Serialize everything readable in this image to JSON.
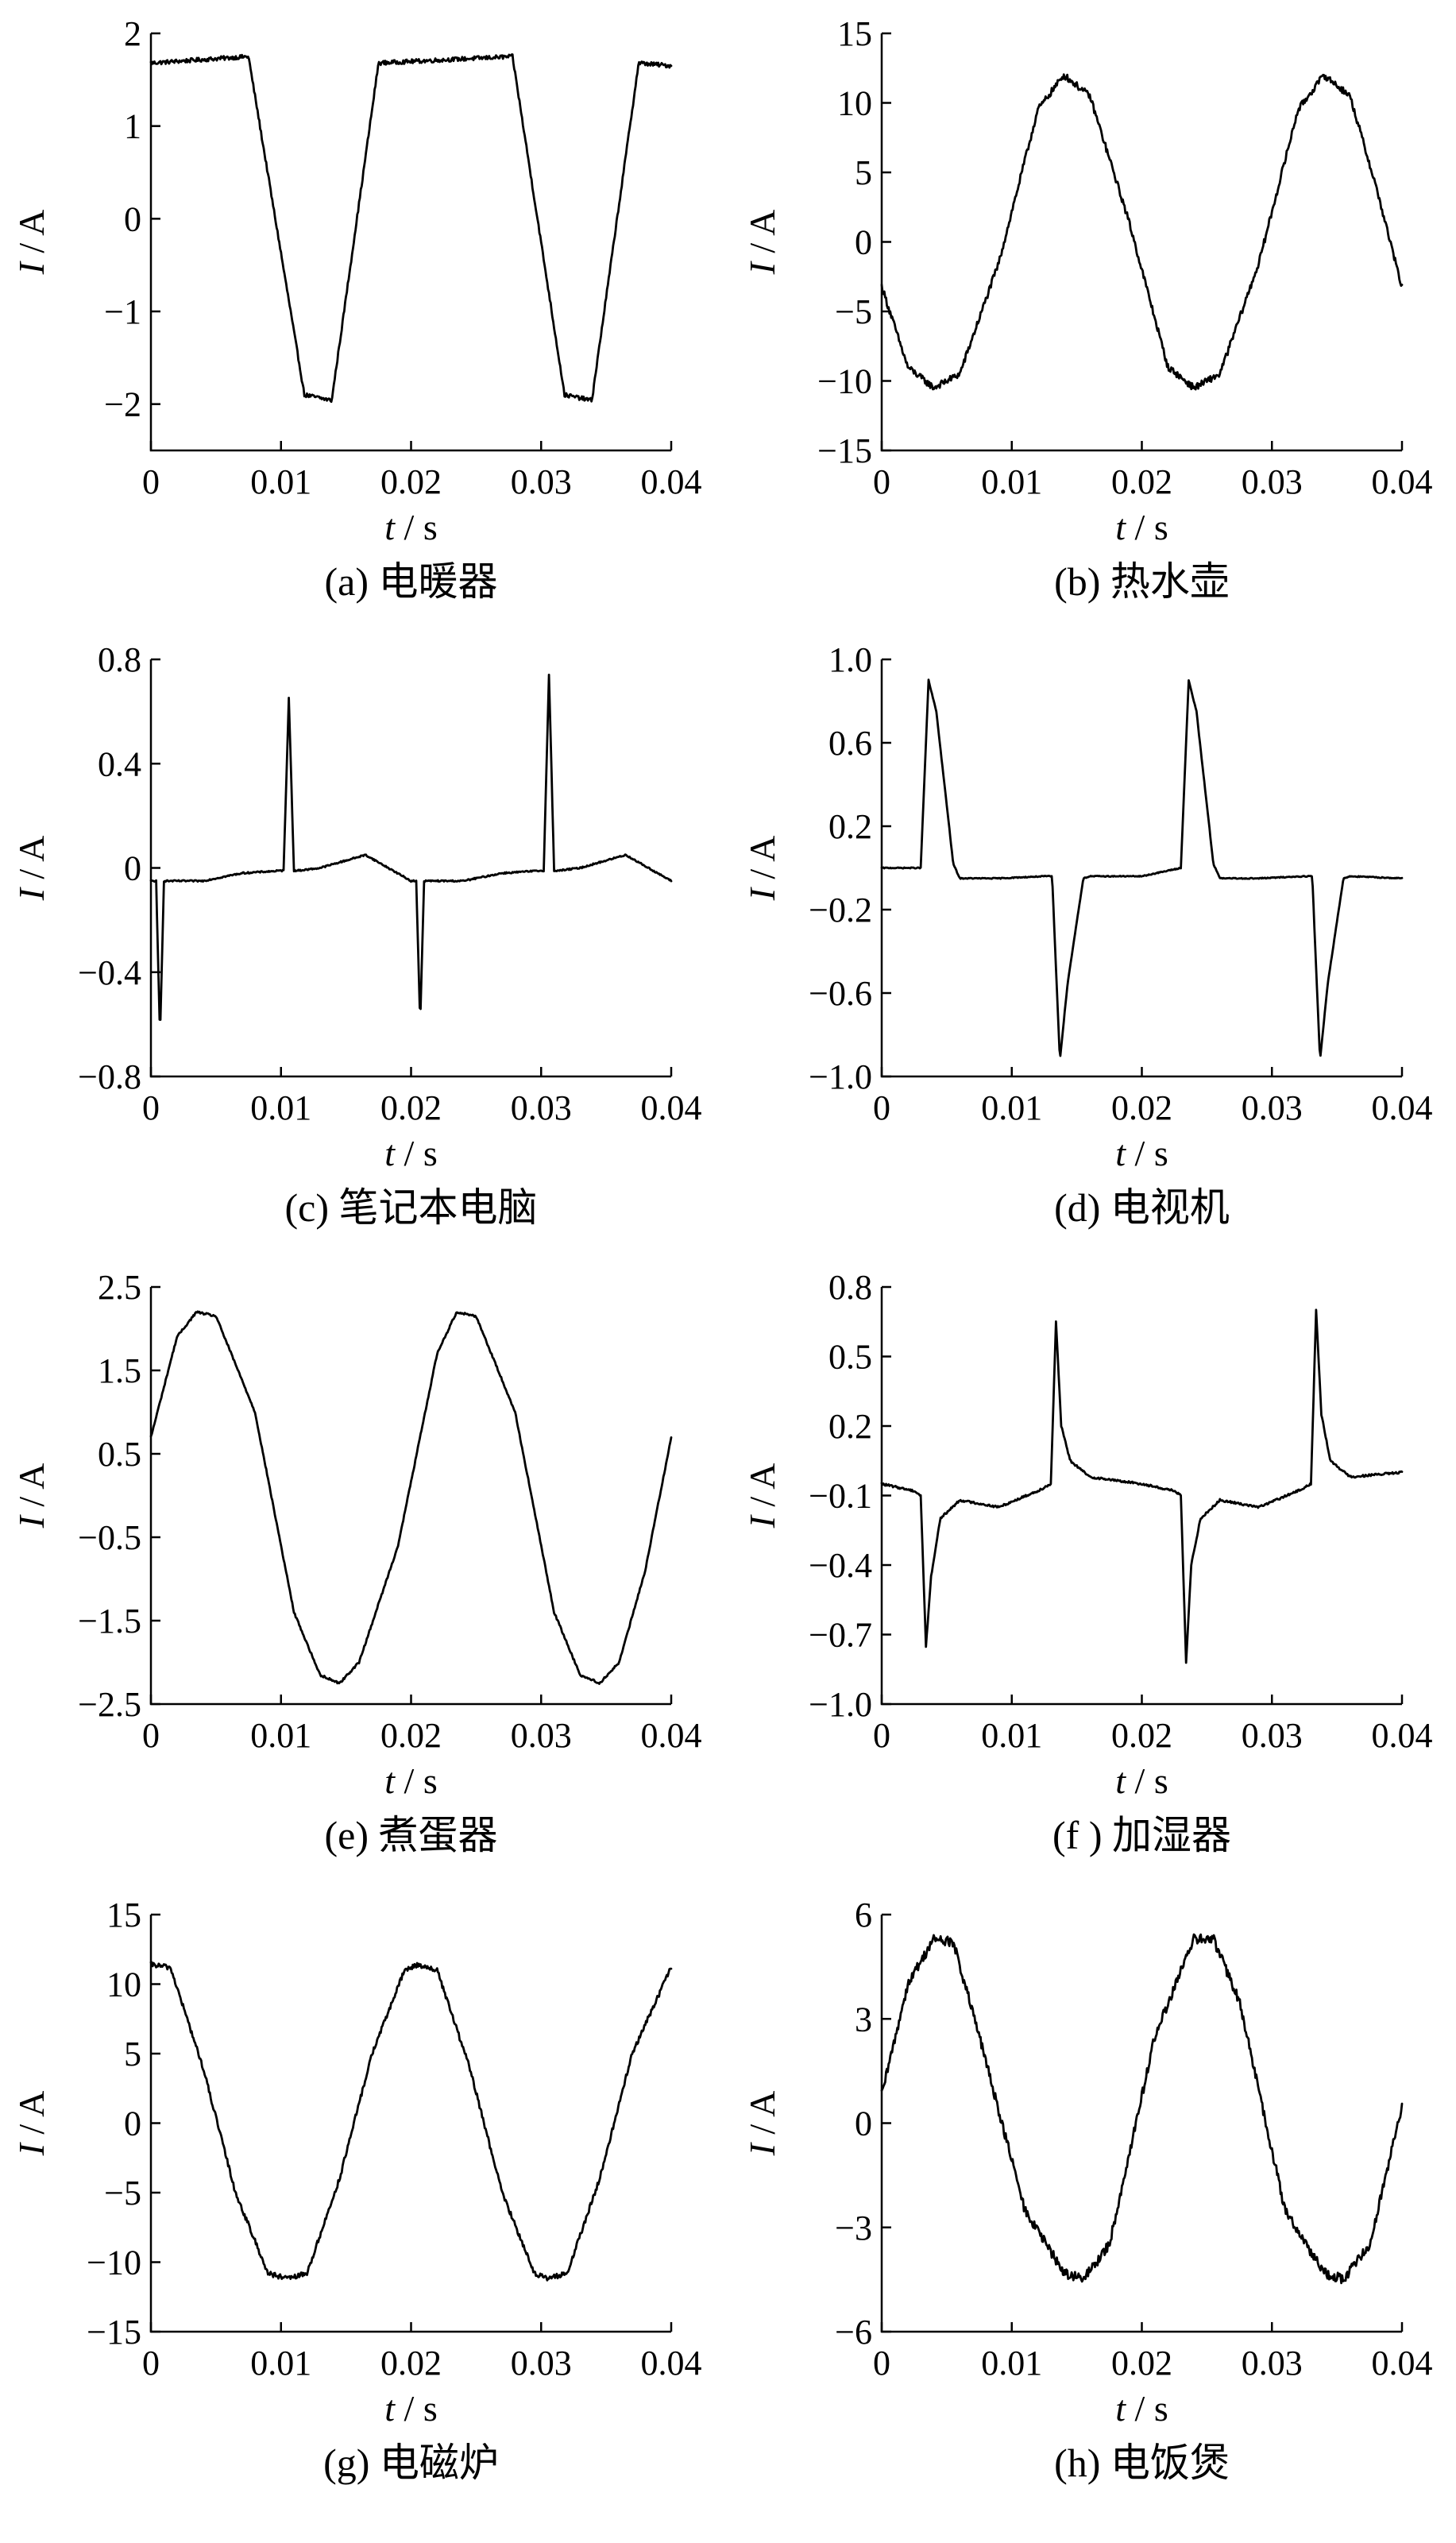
{
  "figure": {
    "panels": [
      {
        "caption": "(a)  电暖器"
      },
      {
        "caption": "(b)  热水壶"
      },
      {
        "caption": "(c)  笔记本电脑"
      },
      {
        "caption": "(d)  电视机"
      },
      {
        "caption": "(e)  煮蛋器"
      },
      {
        "caption": "(f )  加湿器"
      },
      {
        "caption": "(g)  电磁炉"
      },
      {
        "caption": "(h)  电饭煲"
      }
    ]
  },
  "chart_data": [
    {
      "type": "line",
      "caption": "(a)  电暖器",
      "xlabel": {
        "var": "t",
        "unit": " / s"
      },
      "ylabel": {
        "var": "I",
        "unit": " / A"
      },
      "xlim": [
        0,
        0.04
      ],
      "ylim": [
        -2.5,
        2
      ],
      "xticks": [
        0,
        0.01,
        0.02,
        0.03,
        0.04
      ],
      "xtick_labels": [
        "0",
        "0.01",
        "0.02",
        "0.03",
        "0.04"
      ],
      "yticks": [
        2,
        1,
        0,
        -1,
        -2
      ],
      "ytick_labels": [
        "2",
        "1",
        "0",
        "−1",
        "−2"
      ],
      "series": [
        {
          "noise": 0.05,
          "x": [
            0,
            0.0075,
            0.0118,
            0.0139,
            0.0175,
            0.0278,
            0.0318,
            0.0339,
            0.0375,
            0.04
          ],
          "y": [
            1.68,
            1.75,
            -1.9,
            -1.96,
            1.68,
            1.75,
            -1.9,
            -1.96,
            1.68,
            1.65
          ]
        }
      ]
    },
    {
      "type": "line",
      "caption": "(b)  热水壶",
      "xlabel": {
        "var": "t",
        "unit": " / s"
      },
      "ylabel": {
        "var": "I",
        "unit": " / A"
      },
      "xlim": [
        0,
        0.04
      ],
      "ylim": [
        -15,
        15
      ],
      "xticks": [
        0,
        0.01,
        0.02,
        0.03,
        0.04
      ],
      "xtick_labels": [
        "0",
        "0.01",
        "0.02",
        "0.03",
        "0.04"
      ],
      "yticks": [
        15,
        10,
        5,
        0,
        -5,
        -10,
        -15
      ],
      "ytick_labels": [
        "15",
        "10",
        "5",
        "0",
        "−5",
        "−10",
        "−15"
      ],
      "series": [
        {
          "noise": 0.08,
          "x": [
            0,
            0.002,
            0.004,
            0.006,
            0.009,
            0.012,
            0.014,
            0.016,
            0.019,
            0.022,
            0.024,
            0.026,
            0.029,
            0.032,
            0.034,
            0.036,
            0.038,
            0.04
          ],
          "y": [
            -3.2,
            -9.0,
            -10.5,
            -9.5,
            -1.5,
            9.5,
            12.0,
            10.5,
            1.5,
            -9.0,
            -10.5,
            -9.5,
            -1.5,
            9.5,
            12.0,
            10.5,
            4.0,
            -3.3
          ]
        }
      ]
    },
    {
      "type": "line",
      "caption": "(c)  笔记本电脑",
      "xlabel": {
        "var": "t",
        "unit": " / s"
      },
      "ylabel": {
        "var": "I",
        "unit": " / A"
      },
      "xlim": [
        0,
        0.04
      ],
      "ylim": [
        -0.8,
        0.8
      ],
      "xticks": [
        0,
        0.01,
        0.02,
        0.03,
        0.04
      ],
      "xtick_labels": [
        "0",
        "0.01",
        "0.02",
        "0.03",
        "0.04"
      ],
      "yticks": [
        0.8,
        0.4,
        0,
        -0.4,
        -0.8
      ],
      "ytick_labels": [
        "0.8",
        "0.4",
        "0",
        "−0.4",
        "−0.8"
      ],
      "series": [
        {
          "noise": 0.018,
          "x": [
            0,
            0.0004,
            0.0007,
            0.001,
            0.0014,
            0.004,
            0.007,
            0.0102,
            0.0106,
            0.011,
            0.0114,
            0.013,
            0.0165,
            0.02,
            0.0204,
            0.0207,
            0.021,
            0.0214,
            0.024,
            0.027,
            0.0302,
            0.0306,
            0.031,
            0.0314,
            0.033,
            0.0365,
            0.04
          ],
          "y": [
            -0.05,
            -0.05,
            -0.65,
            -0.05,
            -0.05,
            -0.05,
            -0.02,
            -0.01,
            0.65,
            -0.01,
            -0.01,
            0.0,
            0.05,
            -0.05,
            -0.05,
            -0.6,
            -0.05,
            -0.05,
            -0.05,
            -0.02,
            -0.01,
            0.74,
            -0.01,
            -0.01,
            0.0,
            0.05,
            -0.05
          ]
        }
      ]
    },
    {
      "type": "line",
      "caption": "(d)  电视机",
      "xlabel": {
        "var": "t",
        "unit": " / s"
      },
      "ylabel": {
        "var": "I",
        "unit": " / A"
      },
      "xlim": [
        0,
        0.04
      ],
      "ylim": [
        -1.0,
        1.0
      ],
      "xticks": [
        0,
        0.01,
        0.02,
        0.03,
        0.04
      ],
      "xtick_labels": [
        "0",
        "0.01",
        "0.02",
        "0.03",
        "0.04"
      ],
      "yticks": [
        1.0,
        0.6,
        0.2,
        -0.2,
        -0.6,
        -1.0
      ],
      "ytick_labels": [
        "1.0",
        "0.6",
        "0.2",
        "−0.2",
        "−0.6",
        "−1.0"
      ],
      "series": [
        {
          "noise": 0.012,
          "x": [
            0,
            0.003,
            0.0036,
            0.0042,
            0.0055,
            0.006,
            0.009,
            0.0125,
            0.0131,
            0.0137,
            0.0143,
            0.0155,
            0.016,
            0.02,
            0.023,
            0.0236,
            0.0242,
            0.0255,
            0.026,
            0.029,
            0.0325,
            0.0331,
            0.0337,
            0.0343,
            0.0355,
            0.036,
            0.04
          ],
          "y": [
            0.0,
            0.0,
            0.9,
            0.75,
            0.02,
            -0.05,
            -0.05,
            -0.04,
            -0.04,
            -0.92,
            -0.55,
            -0.05,
            -0.04,
            -0.04,
            0.0,
            0.9,
            0.75,
            0.02,
            -0.05,
            -0.05,
            -0.04,
            -0.04,
            -0.92,
            -0.55,
            -0.05,
            -0.04,
            -0.05
          ]
        }
      ]
    },
    {
      "type": "line",
      "caption": "(e)  煮蛋器",
      "xlabel": {
        "var": "t",
        "unit": " / s"
      },
      "ylabel": {
        "var": "I",
        "unit": " / A"
      },
      "xlim": [
        0,
        0.04
      ],
      "ylim": [
        -2.5,
        2.5
      ],
      "xticks": [
        0,
        0.01,
        0.02,
        0.03,
        0.04
      ],
      "xtick_labels": [
        "0",
        "0.01",
        "0.02",
        "0.03",
        "0.04"
      ],
      "yticks": [
        2.5,
        1.5,
        0.5,
        -0.5,
        -1.5,
        -2.5
      ],
      "ytick_labels": [
        "2.5",
        "1.5",
        "0.5",
        "−0.5",
        "−1.5",
        "−2.5"
      ],
      "series": [
        {
          "noise": 0.025,
          "x": [
            0,
            0.002,
            0.0035,
            0.005,
            0.008,
            0.011,
            0.013,
            0.0145,
            0.016,
            0.019,
            0.022,
            0.0235,
            0.025,
            0.028,
            0.031,
            0.033,
            0.0345,
            0.036,
            0.038,
            0.04
          ],
          "y": [
            0.7,
            1.9,
            2.2,
            2.15,
            1.0,
            -1.4,
            -2.15,
            -2.25,
            -2.0,
            -0.6,
            1.7,
            2.2,
            2.15,
            1.0,
            -1.4,
            -2.15,
            -2.25,
            -2.0,
            -0.9,
            0.7
          ]
        }
      ]
    },
    {
      "type": "line",
      "caption": "(f )  加湿器",
      "xlabel": {
        "var": "t",
        "unit": " / s"
      },
      "ylabel": {
        "var": "I",
        "unit": " / A"
      },
      "xlim": [
        0,
        0.04
      ],
      "ylim": [
        -1.0,
        0.8
      ],
      "xticks": [
        0,
        0.01,
        0.02,
        0.03,
        0.04
      ],
      "xtick_labels": [
        "0",
        "0.01",
        "0.02",
        "0.03",
        "0.04"
      ],
      "yticks": [
        0.8,
        0.5,
        0.2,
        -0.1,
        -0.4,
        -0.7,
        -1.0
      ],
      "ytick_labels": [
        "0.8",
        "0.5",
        "0.2",
        "−0.1",
        "−0.4",
        "−0.7",
        "−1.0"
      ],
      "series": [
        {
          "noise": 0.025,
          "x": [
            0,
            0.0025,
            0.003,
            0.0034,
            0.0038,
            0.0045,
            0.006,
            0.009,
            0.012,
            0.013,
            0.0134,
            0.0138,
            0.0145,
            0.016,
            0.02,
            0.0225,
            0.023,
            0.0234,
            0.0238,
            0.0245,
            0.026,
            0.029,
            0.032,
            0.033,
            0.0334,
            0.0338,
            0.0345,
            0.036,
            0.04
          ],
          "y": [
            -0.05,
            -0.08,
            -0.1,
            -0.75,
            -0.45,
            -0.2,
            -0.12,
            -0.15,
            -0.08,
            -0.05,
            0.65,
            0.2,
            0.05,
            -0.02,
            -0.05,
            -0.08,
            -0.1,
            -0.82,
            -0.4,
            -0.2,
            -0.12,
            -0.15,
            -0.08,
            -0.05,
            0.7,
            0.25,
            0.05,
            -0.02,
            0.0
          ]
        }
      ]
    },
    {
      "type": "line",
      "caption": "(g)  电磁炉",
      "xlabel": {
        "var": "t",
        "unit": " / s"
      },
      "ylabel": {
        "var": "I",
        "unit": " / A"
      },
      "xlim": [
        0,
        0.04
      ],
      "ylim": [
        -15,
        15
      ],
      "xticks": [
        0,
        0.01,
        0.02,
        0.03,
        0.04
      ],
      "xtick_labels": [
        "0",
        "0.01",
        "0.02",
        "0.03",
        "0.04"
      ],
      "yticks": [
        15,
        10,
        5,
        0,
        -5,
        -10,
        -15
      ],
      "ytick_labels": [
        "15",
        "10",
        "5",
        "0",
        "−5",
        "−10",
        "−15"
      ],
      "series": [
        {
          "noise": 0.06,
          "x": [
            0,
            0.0015,
            0.004,
            0.0065,
            0.009,
            0.0105,
            0.012,
            0.0145,
            0.017,
            0.0195,
            0.0205,
            0.022,
            0.0245,
            0.027,
            0.0295,
            0.0305,
            0.032,
            0.0345,
            0.037,
            0.04
          ],
          "y": [
            11.4,
            11.2,
            4.0,
            -5.0,
            -10.8,
            -11.2,
            -10.8,
            -4.0,
            5.0,
            11.0,
            11.4,
            11.0,
            4.0,
            -5.0,
            -10.8,
            -11.2,
            -10.8,
            -4.0,
            5.0,
            11.2
          ]
        }
      ]
    },
    {
      "type": "line",
      "caption": "(h)  电饭煲",
      "xlabel": {
        "var": "t",
        "unit": " / s"
      },
      "ylabel": {
        "var": "I",
        "unit": " / A"
      },
      "xlim": [
        0,
        0.04
      ],
      "ylim": [
        -6,
        6
      ],
      "xticks": [
        0,
        0.01,
        0.02,
        0.03,
        0.04
      ],
      "xtick_labels": [
        "0",
        "0.01",
        "0.02",
        "0.03",
        "0.04"
      ],
      "yticks": [
        6,
        3,
        0,
        -3,
        -6
      ],
      "ytick_labels": [
        "6",
        "3",
        "0",
        "−3",
        "−6"
      ],
      "series": [
        {
          "noise": 0.12,
          "x": [
            0,
            0.002,
            0.004,
            0.0055,
            0.0075,
            0.011,
            0.014,
            0.0155,
            0.0175,
            0.021,
            0.024,
            0.0255,
            0.0275,
            0.031,
            0.034,
            0.0355,
            0.0375,
            0.04
          ],
          "y": [
            0.8,
            4.0,
            5.3,
            5.2,
            2.5,
            -2.5,
            -4.3,
            -4.5,
            -3.5,
            2.5,
            5.3,
            5.3,
            3.5,
            -2.5,
            -4.3,
            -4.5,
            -3.5,
            0.5
          ]
        }
      ]
    }
  ]
}
